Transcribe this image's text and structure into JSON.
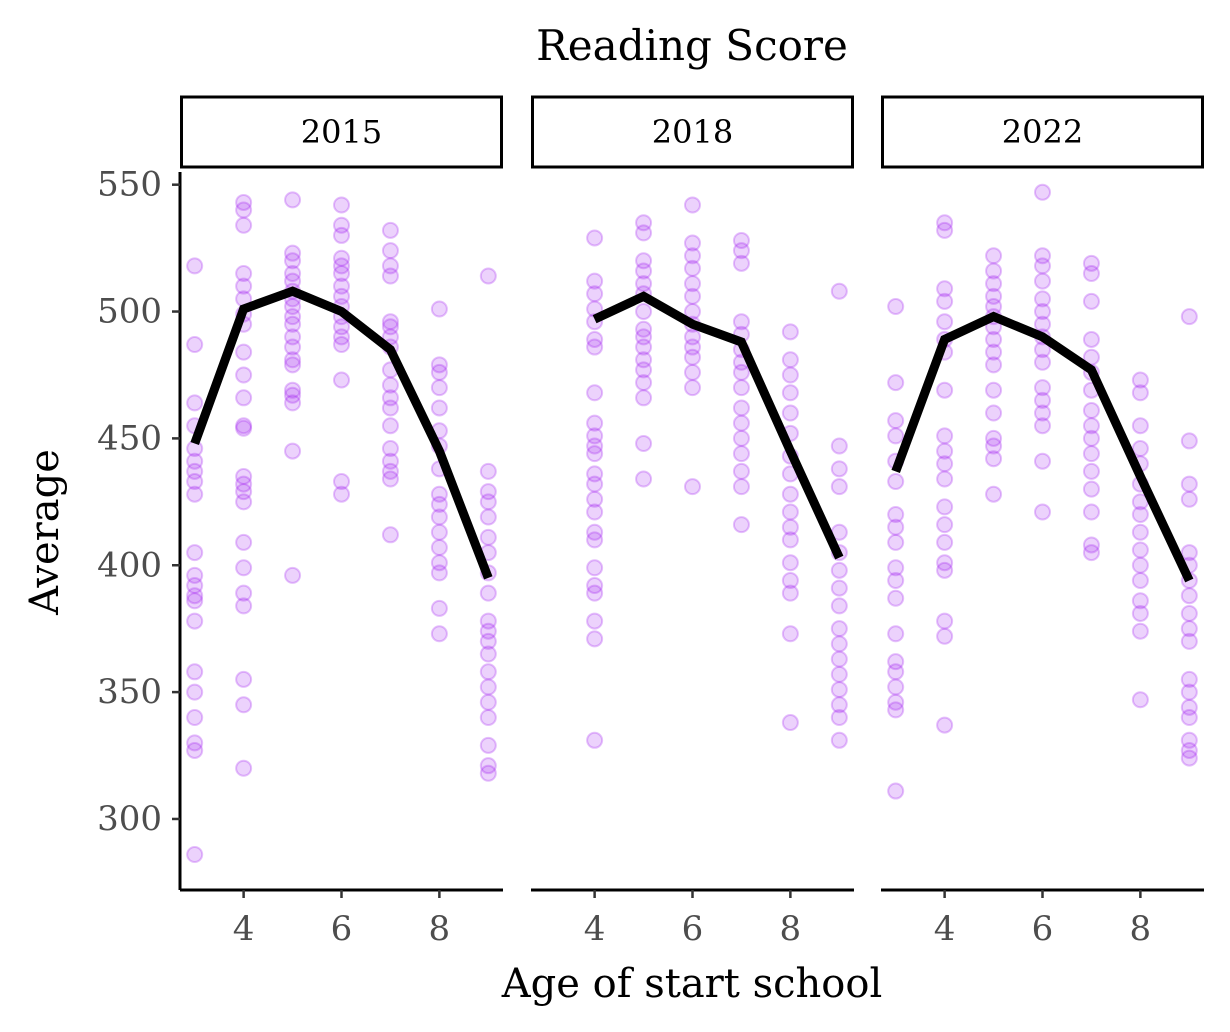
{
  "chart_data": {
    "type": "scatter",
    "title": "Reading Score",
    "xlabel": "Age of start school",
    "ylabel": "Average",
    "ylim": [
      272,
      555
    ],
    "xlim": [
      2.7,
      9.3
    ],
    "x_ticks": [
      4,
      6,
      8
    ],
    "y_ticks": [
      300,
      350,
      400,
      450,
      500,
      550
    ],
    "point_color": "#a020f0",
    "line_color": "#000000",
    "grid": false,
    "panels": [
      {
        "label": "2015",
        "points": {
          "3": [
            518,
            487,
            464,
            455,
            446,
            441,
            437,
            433,
            428,
            405,
            396,
            392,
            388,
            386,
            378,
            358,
            350,
            340,
            330,
            327,
            286
          ],
          "4": [
            543,
            540,
            534,
            515,
            510,
            505,
            499,
            495,
            484,
            475,
            466,
            455,
            454,
            435,
            432,
            429,
            425,
            409,
            399,
            389,
            384,
            355,
            345,
            320
          ],
          "5": [
            544,
            523,
            520,
            515,
            512,
            508,
            505,
            502,
            498,
            495,
            490,
            486,
            481,
            479,
            469,
            467,
            464,
            445,
            396
          ],
          "6": [
            542,
            534,
            530,
            521,
            518,
            515,
            510,
            506,
            502,
            498,
            494,
            490,
            487,
            473,
            433,
            428
          ],
          "7": [
            532,
            524,
            518,
            514,
            496,
            494,
            490,
            486,
            477,
            471,
            466,
            462,
            455,
            446,
            441,
            437,
            434,
            412
          ],
          "8": [
            501,
            479,
            476,
            470,
            462,
            453,
            447,
            438,
            428,
            424,
            419,
            413,
            407,
            401,
            397,
            383,
            373
          ],
          "9": [
            514,
            437,
            429,
            425,
            419,
            411,
            405,
            397,
            389,
            378,
            374,
            370,
            365,
            358,
            352,
            346,
            340,
            329,
            321,
            318
          ]
        },
        "line": [
          [
            3,
            448
          ],
          [
            4,
            501
          ],
          [
            5,
            508
          ],
          [
            6,
            500
          ],
          [
            7,
            485
          ],
          [
            8,
            445
          ],
          [
            9,
            395
          ]
        ]
      },
      {
        "label": "2018",
        "points": {
          "4": [
            529,
            512,
            507,
            501,
            496,
            489,
            486,
            468,
            456,
            451,
            447,
            444,
            436,
            432,
            426,
            421,
            413,
            410,
            399,
            392,
            389,
            378,
            371,
            331
          ],
          "5": [
            535,
            531,
            520,
            516,
            511,
            507,
            500,
            493,
            490,
            486,
            481,
            477,
            472,
            466,
            448,
            434
          ],
          "6": [
            542,
            527,
            522,
            517,
            511,
            506,
            500,
            495,
            490,
            486,
            482,
            476,
            470,
            431
          ],
          "7": [
            528,
            524,
            519,
            496,
            491,
            485,
            480,
            476,
            470,
            462,
            456,
            450,
            444,
            437,
            431,
            416
          ],
          "8": [
            492,
            481,
            475,
            468,
            460,
            452,
            443,
            436,
            428,
            421,
            415,
            410,
            401,
            394,
            389,
            373,
            338
          ],
          "9": [
            508,
            447,
            438,
            431,
            413,
            405,
            398,
            391,
            384,
            375,
            369,
            363,
            357,
            351,
            345,
            340,
            331
          ]
        },
        "line": [
          [
            4,
            497
          ],
          [
            5,
            506
          ],
          [
            6,
            495
          ],
          [
            7,
            488
          ],
          [
            8,
            445
          ],
          [
            9,
            403
          ]
        ]
      },
      {
        "label": "2022",
        "points": {
          "3": [
            502,
            472,
            457,
            451,
            441,
            433,
            420,
            415,
            409,
            399,
            394,
            387,
            373,
            362,
            358,
            352,
            346,
            343,
            311
          ],
          "4": [
            535,
            532,
            509,
            504,
            496,
            489,
            484,
            469,
            451,
            445,
            440,
            434,
            423,
            416,
            409,
            401,
            398,
            378,
            372,
            337
          ],
          "5": [
            522,
            516,
            511,
            506,
            502,
            498,
            494,
            489,
            484,
            479,
            469,
            460,
            450,
            447,
            442,
            428
          ],
          "6": [
            547,
            522,
            518,
            512,
            505,
            500,
            495,
            490,
            485,
            480,
            470,
            465,
            460,
            455,
            441,
            421
          ],
          "7": [
            519,
            515,
            504,
            489,
            482,
            476,
            469,
            461,
            455,
            450,
            444,
            437,
            430,
            421,
            408,
            405
          ],
          "8": [
            473,
            468,
            455,
            446,
            440,
            432,
            425,
            420,
            413,
            406,
            400,
            394,
            386,
            381,
            374,
            347
          ],
          "9": [
            498,
            449,
            432,
            426,
            405,
            400,
            394,
            388,
            381,
            375,
            370,
            355,
            350,
            344,
            340,
            331,
            327,
            324
          ]
        },
        "line": [
          [
            3,
            437
          ],
          [
            4,
            489
          ],
          [
            5,
            498
          ],
          [
            6,
            490
          ],
          [
            7,
            477
          ],
          [
            8,
            435
          ],
          [
            9,
            394
          ]
        ]
      }
    ]
  }
}
